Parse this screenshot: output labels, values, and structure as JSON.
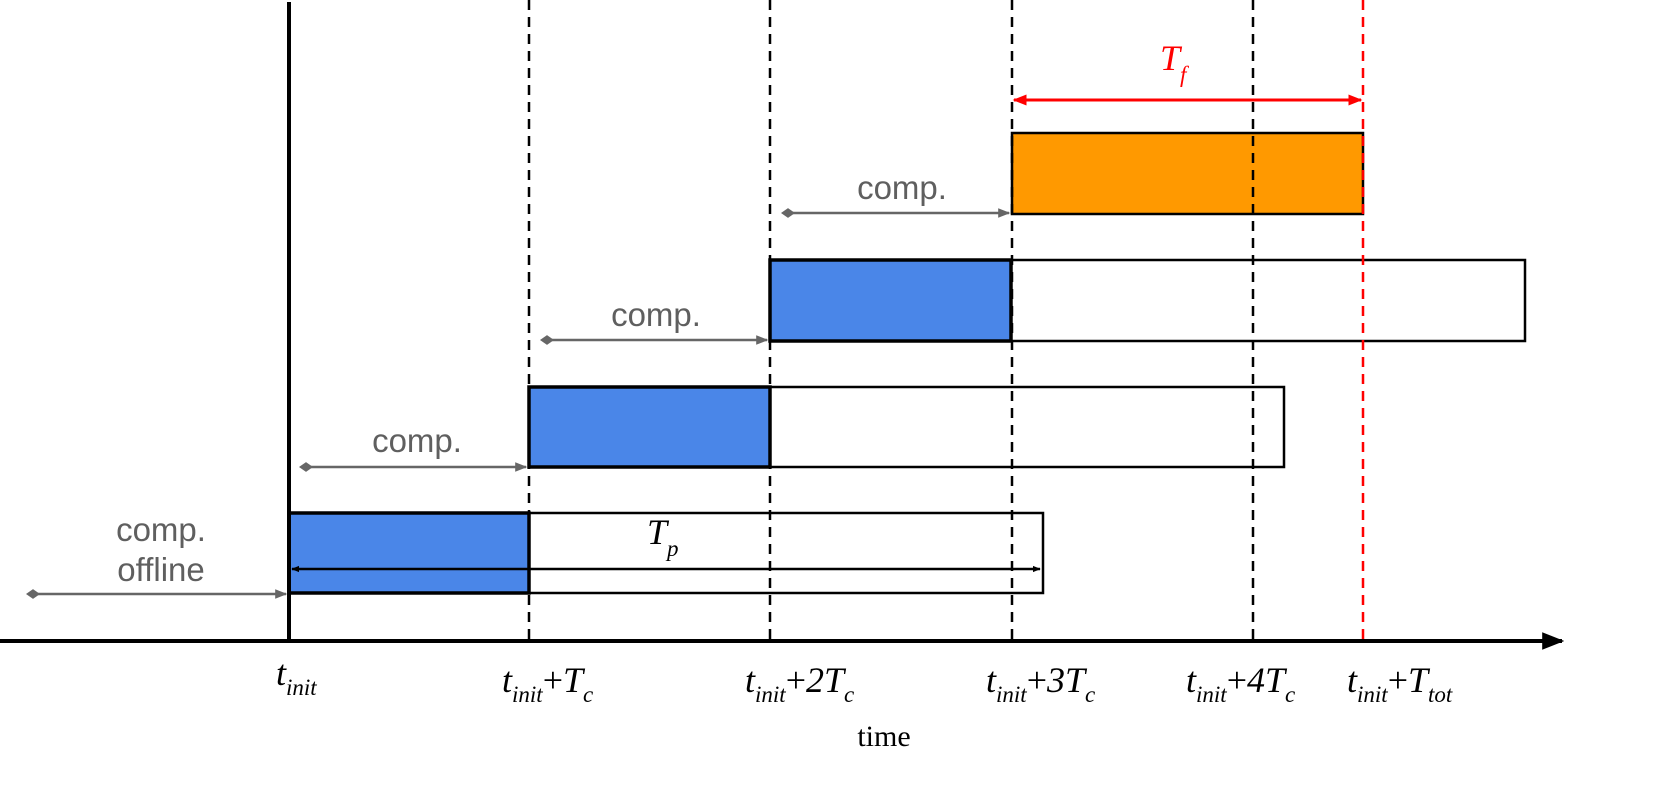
{
  "colors": {
    "blue": "#4a86e8",
    "orange": "#ff9900",
    "red": "#ff0000",
    "gray": "#666666",
    "black": "#000000"
  },
  "labels": {
    "comp_offline_line1": "comp.",
    "comp_offline_line2": "offline",
    "comp": "comp.",
    "axis_title": "time"
  },
  "math": {
    "t": "t",
    "init": "init",
    "plus": "+",
    "T": "T",
    "c": "c",
    "p": "p",
    "f": "f",
    "tot": "tot",
    "two": "2",
    "three": "3",
    "four": "4"
  }
}
